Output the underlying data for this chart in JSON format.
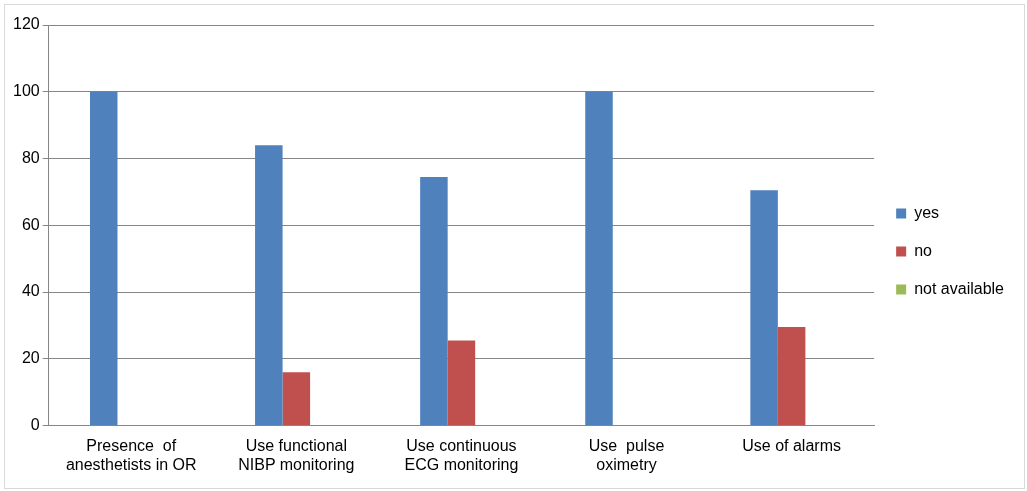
{
  "chart_data": {
    "type": "bar",
    "categories": [
      "Presence  of anesthetists in OR",
      "Use functional NIBP monitoring",
      "Use continuous ECG monitoring",
      "Use  pulse oximetry",
      "Use of alarms"
    ],
    "series": [
      {
        "name": "yes",
        "color": "#4f81bd",
        "values": [
          100,
          84,
          74.5,
          100,
          70.5
        ]
      },
      {
        "name": "no",
        "color": "#c0504d",
        "values": [
          0,
          16,
          25.5,
          0,
          29.5
        ]
      },
      {
        "name": "not available",
        "color": "#9bbb59",
        "values": [
          0,
          0,
          0,
          0,
          0
        ]
      }
    ],
    "ylim": [
      0,
      120
    ],
    "yticks": [
      0,
      20,
      40,
      60,
      80,
      100,
      120
    ],
    "grid": "y",
    "legend": "right"
  }
}
